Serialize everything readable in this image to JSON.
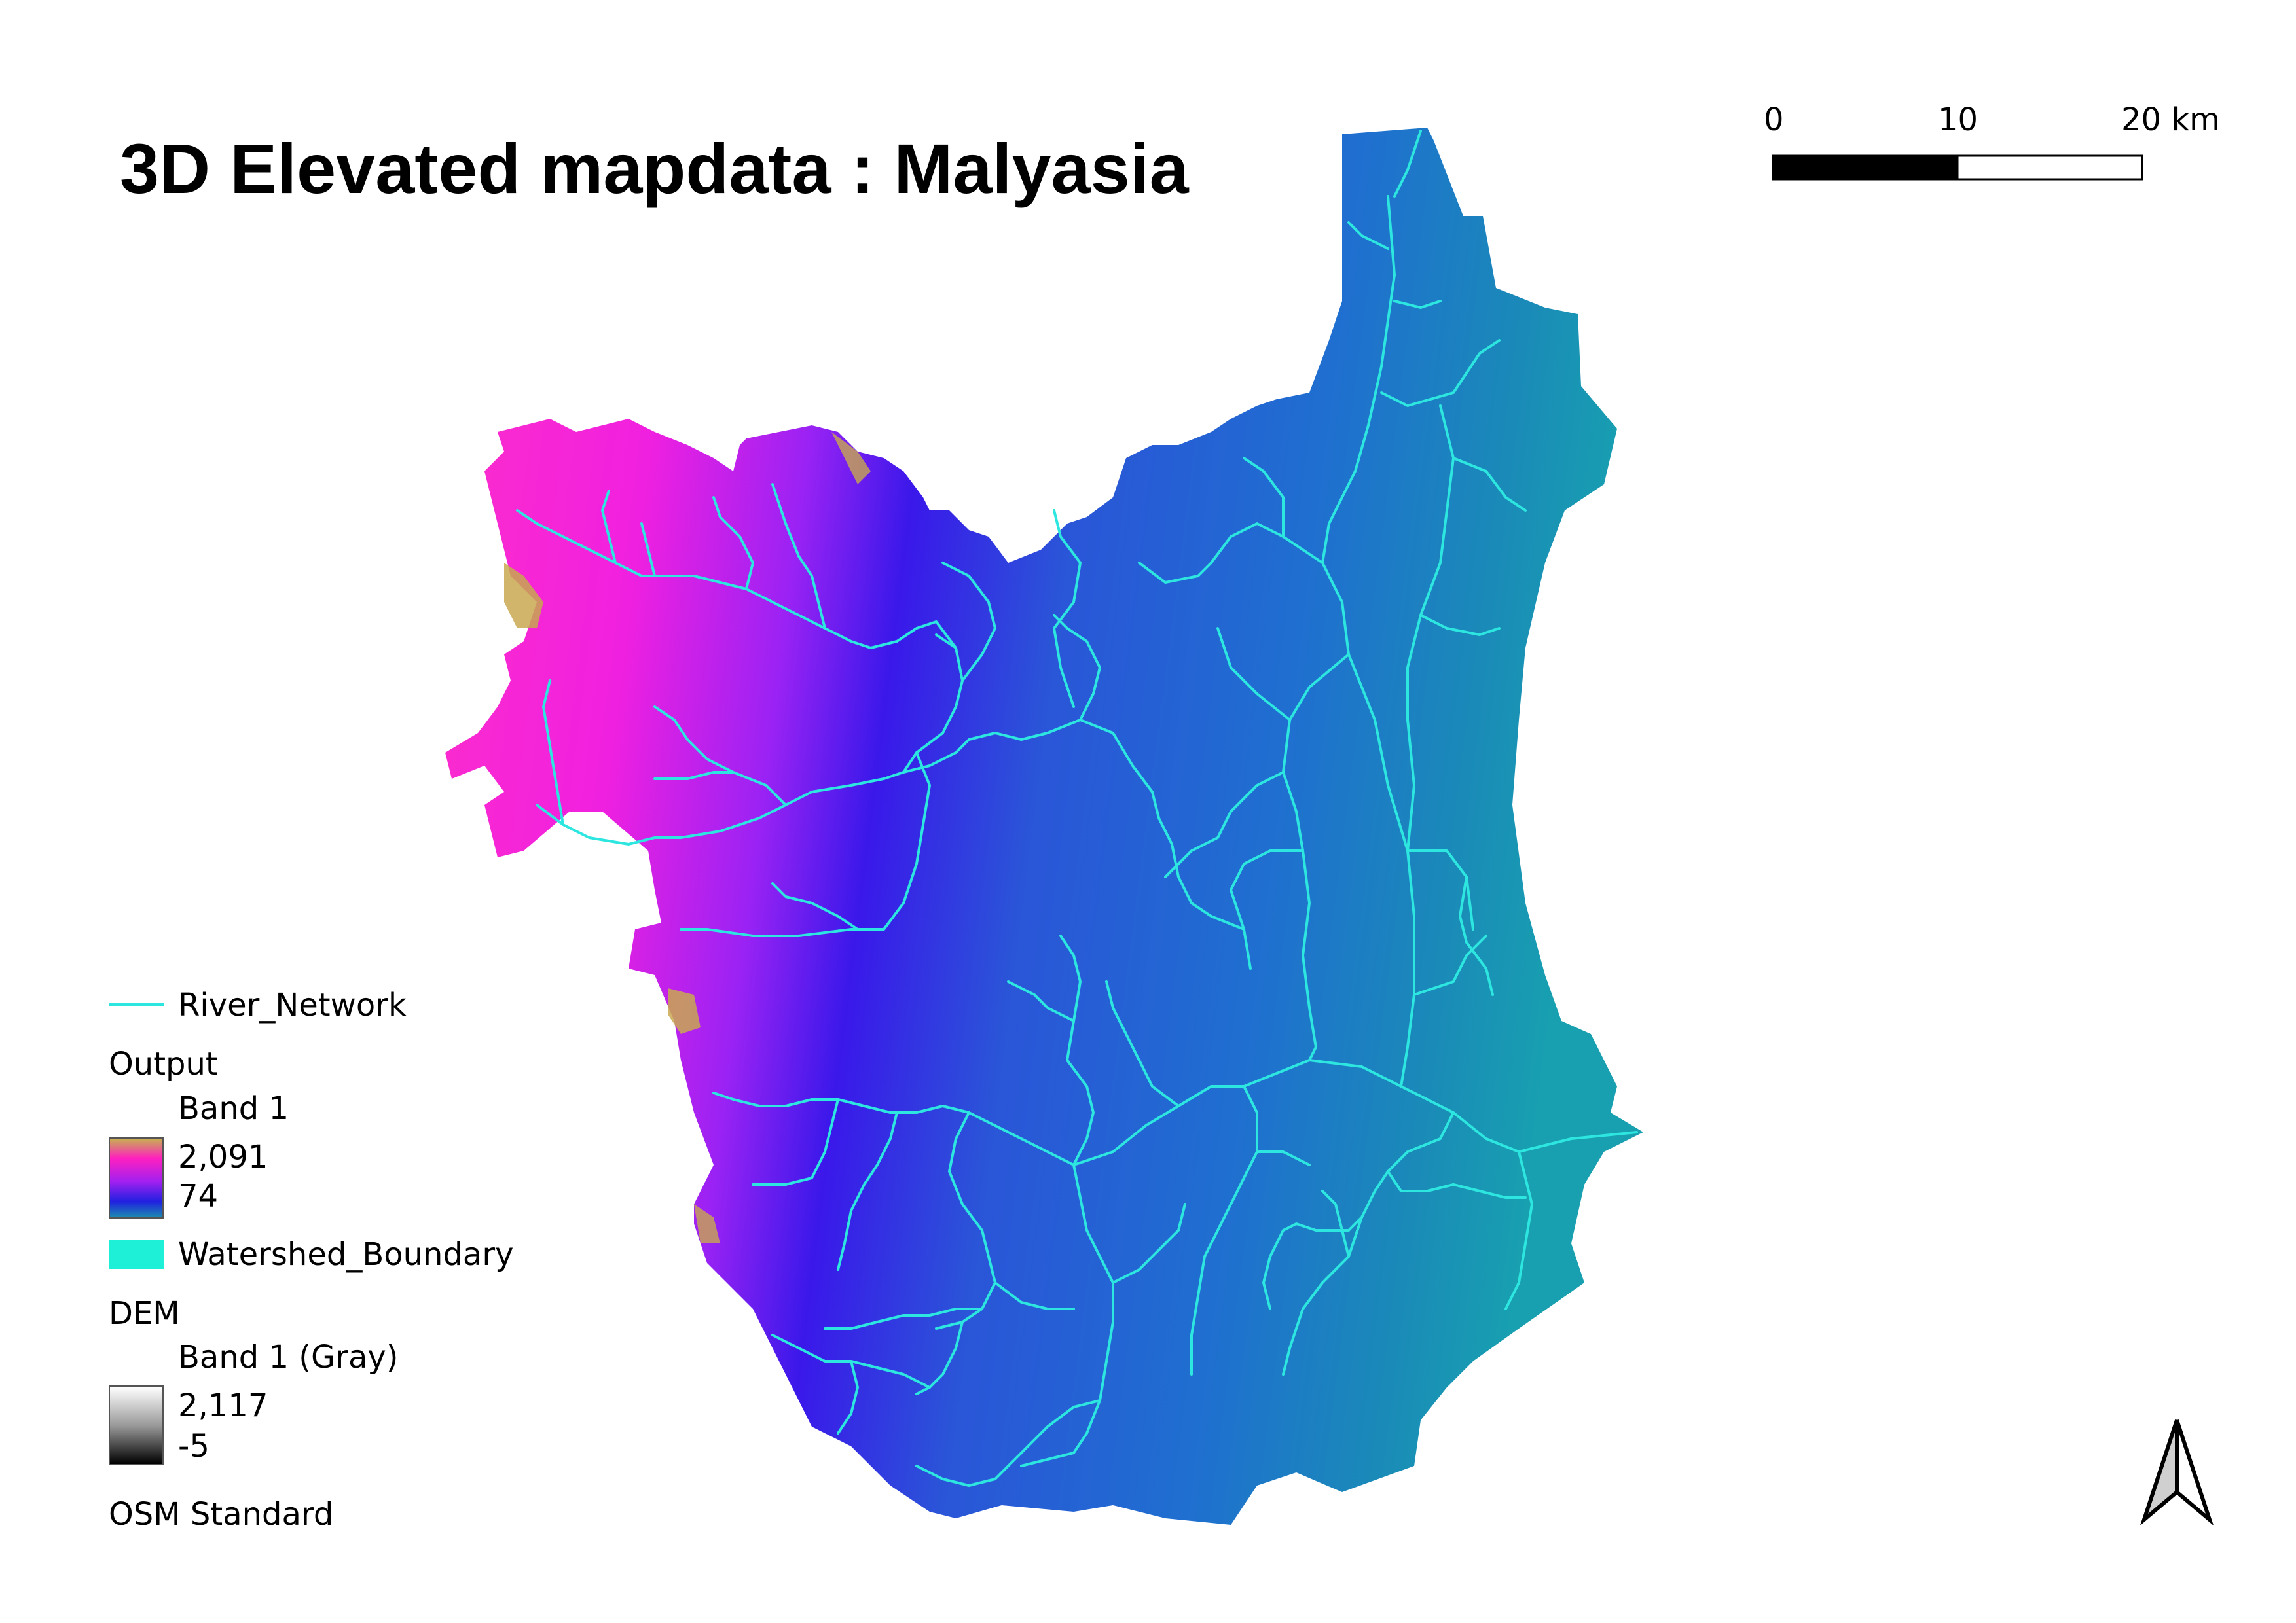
{
  "title": "3D Elevated mapdata : Malyasia",
  "scale_bar": {
    "labels": [
      "0",
      "10",
      "20 km"
    ]
  },
  "legend": {
    "river_network": {
      "label": "River_Network",
      "color": "#2ee6e0"
    },
    "output": {
      "label": "Output",
      "band": "Band 1",
      "max": "2,091",
      "min": "74",
      "ramp_colors": [
        "#c8b050",
        "#ff20c0",
        "#a020f0",
        "#2020e0",
        "#1a8ab0"
      ]
    },
    "watershed_boundary": {
      "label": "Watershed_Boundary",
      "color": "#1ef0d8"
    },
    "dem": {
      "label": "DEM",
      "band": "Band 1 (Gray)",
      "max": "2,117",
      "min": "-5"
    },
    "basemap": {
      "label": "OSM Standard"
    }
  },
  "north_arrow": {
    "icon": "north-arrow-icon"
  }
}
